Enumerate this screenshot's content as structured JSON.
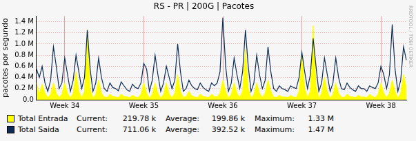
{
  "chart_data": {
    "type": "line",
    "title": "RS - PR | 200G | Pacotes",
    "y_label": "pacotes por segundo",
    "watermark": "RRDTOOL / TOBI OETIKER",
    "stat_labels": [
      "Current:",
      "Average:",
      "Maximum:"
    ],
    "categories": [
      null,
      null,
      null,
      null,
      null,
      null,
      null,
      null,
      null,
      null,
      "Week 34",
      null,
      null,
      null,
      null,
      null,
      null,
      null,
      null,
      null,
      null,
      null,
      null,
      null,
      null,
      null,
      null,
      null,
      null,
      null,
      null,
      null,
      null,
      null,
      null,
      null,
      null,
      null,
      "Week 35",
      null,
      null,
      null,
      null,
      null,
      null,
      null,
      null,
      null,
      null,
      null,
      null,
      null,
      null,
      null,
      null,
      null,
      null,
      null,
      null,
      null,
      null,
      null,
      null,
      null,
      null,
      null,
      "Week 36",
      null,
      null,
      null,
      null,
      null,
      null,
      null,
      null,
      null,
      null,
      null,
      null,
      null,
      null,
      null,
      null,
      null,
      null,
      null,
      null,
      null,
      null,
      null,
      null,
      null,
      null,
      null,
      "Week 37",
      null,
      null,
      null,
      null,
      null,
      null,
      null,
      null,
      null,
      null,
      null,
      null,
      null,
      null,
      null,
      null,
      null,
      null,
      null,
      null,
      null,
      null,
      null,
      null,
      null,
      null,
      null,
      "Week 38",
      null,
      null,
      null,
      null,
      null,
      null,
      null,
      null,
      null
    ],
    "series": [
      {
        "name": "Total Entrada",
        "color": "#ffff00",
        "type": "area",
        "current": "219.78 k",
        "average": "199.86 k",
        "maximum": "1.33 M",
        "values": [
          0.3,
          0.1,
          0.28,
          0.12,
          0.04,
          0.1,
          0.3,
          0.12,
          0.04,
          0.1,
          0.3,
          0.12,
          0.03,
          0.12,
          0.5,
          0.15,
          0.04,
          0.15,
          1.25,
          0.2,
          0.03,
          0.1,
          0.35,
          0.12,
          0.05,
          0.04,
          0.1,
          0.06,
          0.05,
          0.04,
          0.1,
          0.06,
          0.05,
          0.04,
          0.08,
          0.05,
          0.04,
          0.1,
          0.3,
          0.12,
          0.03,
          0.1,
          0.3,
          0.12,
          0.03,
          0.1,
          0.3,
          0.1,
          0.04,
          0.12,
          0.45,
          0.15,
          0.04,
          0.06,
          0.15,
          0.07,
          0.05,
          0.04,
          0.1,
          0.06,
          0.05,
          0.04,
          0.1,
          0.06,
          0.05,
          0.12,
          0.35,
          0.15,
          0.03,
          0.1,
          0.3,
          0.12,
          0.04,
          0.15,
          0.9,
          0.2,
          0.03,
          0.1,
          0.3,
          0.12,
          0.04,
          0.12,
          0.35,
          0.15,
          0.05,
          0.04,
          0.08,
          0.05,
          0.05,
          0.04,
          0.08,
          0.05,
          0.04,
          0.15,
          0.8,
          0.2,
          0.04,
          0.15,
          1.33,
          0.25,
          0.03,
          0.12,
          0.4,
          0.15,
          0.03,
          0.1,
          0.3,
          0.12,
          0.05,
          0.04,
          0.1,
          0.06,
          0.05,
          0.04,
          0.08,
          0.05,
          0.05,
          0.04,
          0.1,
          0.06,
          0.04,
          0.1,
          0.3,
          0.12,
          0.04,
          0.12,
          0.35,
          0.15,
          0.03,
          0.12,
          0.45,
          0.22
        ]
      },
      {
        "name": "Total Saida",
        "color": "#0c2c55",
        "type": "line",
        "current": "711.06 k",
        "average": "392.52 k",
        "maximum": "1.47 M",
        "values": [
          0.55,
          0.4,
          0.6,
          0.3,
          0.15,
          0.35,
          0.95,
          0.6,
          0.2,
          0.3,
          0.75,
          0.45,
          0.15,
          0.35,
          0.8,
          0.5,
          0.2,
          0.4,
          1.25,
          0.55,
          0.15,
          0.3,
          0.75,
          0.4,
          0.2,
          0.15,
          0.3,
          0.22,
          0.2,
          0.16,
          0.32,
          0.25,
          0.18,
          0.15,
          0.28,
          0.22,
          0.2,
          0.3,
          0.65,
          0.55,
          0.15,
          0.35,
          0.8,
          0.45,
          0.15,
          0.3,
          0.6,
          0.4,
          0.2,
          0.35,
          1.0,
          0.5,
          0.15,
          0.2,
          0.35,
          0.25,
          0.2,
          0.18,
          0.3,
          0.22,
          0.18,
          0.15,
          0.3,
          0.25,
          0.3,
          0.5,
          1.47,
          0.6,
          0.15,
          0.3,
          0.75,
          0.45,
          0.2,
          0.5,
          1.25,
          0.6,
          0.15,
          0.3,
          0.8,
          0.45,
          0.2,
          0.35,
          0.95,
          0.5,
          0.2,
          0.15,
          0.25,
          0.2,
          0.18,
          0.15,
          0.25,
          0.22,
          0.2,
          0.4,
          0.85,
          0.5,
          0.2,
          0.45,
          1.1,
          0.6,
          0.15,
          0.3,
          0.75,
          0.45,
          0.15,
          0.3,
          0.75,
          0.4,
          0.2,
          0.18,
          0.3,
          0.22,
          0.18,
          0.15,
          0.25,
          0.2,
          0.2,
          0.15,
          0.25,
          0.22,
          0.2,
          0.3,
          0.6,
          0.45,
          0.2,
          0.45,
          1.35,
          0.55,
          0.15,
          0.35,
          0.95,
          0.71
        ]
      }
    ],
    "ylim": [
      0,
      1.5
    ],
    "yticks": [
      {
        "value": 0,
        "label": "0.0"
      },
      {
        "value": 0.2,
        "label": "0.2 M"
      },
      {
        "value": 0.4,
        "label": "0.4 M"
      },
      {
        "value": 0.6,
        "label": "0.6 M"
      },
      {
        "value": 0.8,
        "label": "0.8 M"
      },
      {
        "value": 1.0,
        "label": "1.0 M"
      },
      {
        "value": 1.2,
        "label": "1.2 M"
      },
      {
        "value": 1.4,
        "label": "1.4 M"
      }
    ],
    "grid": true
  }
}
